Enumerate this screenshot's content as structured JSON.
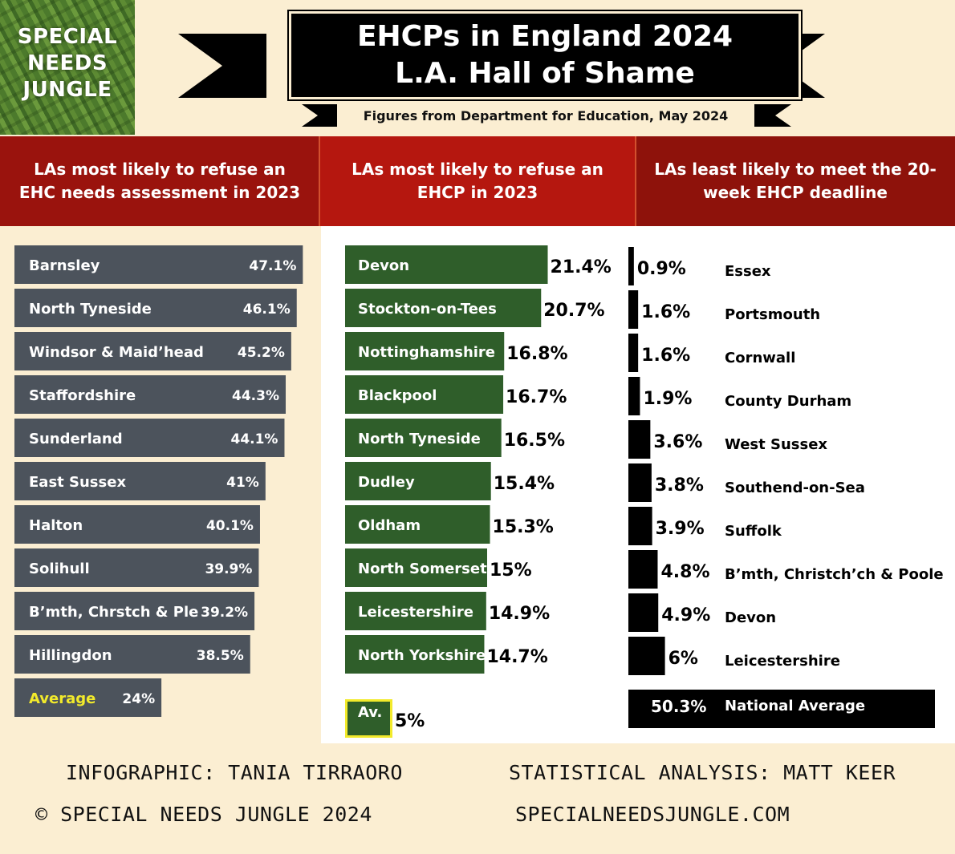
{
  "logo": {
    "lines": [
      "SPECIAL",
      "NEEDS",
      "JUNGLE"
    ]
  },
  "banner": {
    "title_line1": "EHCPs in England 2024",
    "title_line2": "L.A. Hall of Shame",
    "subtitle": "Figures from Department for Education, May 2024"
  },
  "colors": {
    "bar_gray": "#4c535c",
    "bar_green": "#2f5e2a",
    "bar_black": "#000000",
    "header_red": "#9a130d",
    "average_highlight": "#f2ea2b",
    "background": "#fbeed2"
  },
  "chart_data": [
    {
      "type": "bar",
      "orientation": "horizontal",
      "title": "LAs most likely to refuse an EHC needs assessment in 2023",
      "categories": [
        "Barnsley",
        "North Tyneside",
        "Windsor & Maid’head",
        "Staffordshire",
        "Sunderland",
        "East Sussex",
        "Halton",
        "Solihull",
        "B’mth, Chrstch & Ple",
        "Hillingdon",
        "Average"
      ],
      "values": [
        47.1,
        46.1,
        45.2,
        44.3,
        44.1,
        41,
        40.1,
        39.9,
        39.2,
        38.5,
        24
      ],
      "labels": [
        "47.1%",
        "46.1%",
        "45.2%",
        "44.3%",
        "44.1%",
        "41%",
        "40.1%",
        "39.9%",
        "39.2%",
        "38.5%",
        "24%"
      ],
      "highlight": "Average"
    },
    {
      "type": "bar",
      "orientation": "horizontal",
      "title": "LAs most likely to refuse an EHCP in 2023",
      "categories": [
        "Devon",
        "Stockton-on-Tees",
        "Nottinghamshire",
        "Blackpool",
        "North Tyneside",
        "Dudley",
        "Oldham",
        "North Somerset",
        "Leicestershire",
        "North Yorkshire",
        "Av."
      ],
      "values": [
        21.4,
        20.7,
        16.8,
        16.7,
        16.5,
        15.4,
        15.3,
        15,
        14.9,
        14.7,
        5
      ],
      "labels": [
        "21.4%",
        "20.7%",
        "16.8%",
        "16.7%",
        "16.5%",
        "15.4%",
        "15.3%",
        "15%",
        "14.9%",
        "14.7%",
        "5%"
      ],
      "highlight": "Av."
    },
    {
      "type": "bar",
      "orientation": "horizontal",
      "title": "LAs least likely to meet the 20-week EHCP deadline",
      "categories": [
        "Essex",
        "Portsmouth",
        "Cornwall",
        "County Durham",
        "West Sussex",
        "Southend-on-Sea",
        "Suffolk",
        "B’mth, Christch’ch & Poole",
        "Devon",
        "Leicestershire",
        "National Average"
      ],
      "values": [
        0.9,
        1.6,
        1.6,
        1.9,
        3.6,
        3.8,
        3.9,
        4.8,
        4.9,
        6,
        50.3
      ],
      "labels": [
        "0.9%",
        "1.6%",
        "1.6%",
        "1.9%",
        "3.6%",
        "3.8%",
        "3.9%",
        "4.8%",
        "4.9%",
        "6%",
        "50.3%"
      ],
      "highlight": "National Average"
    }
  ],
  "footer": {
    "infographic": "INFOGRAPHIC: TANIA TIRRAORO",
    "analysis": "STATISTICAL ANALYSIS: MATT KEER",
    "copyright": "© SPECIAL NEEDS JUNGLE 2024",
    "website": "SPECIALNEEDSJUNGLE.COM"
  }
}
